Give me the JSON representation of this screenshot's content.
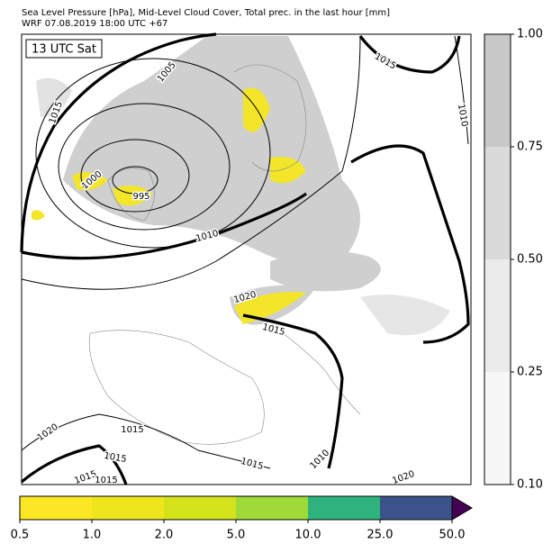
{
  "header": {
    "line1": "Sea Level Pressure [hPa], Mid-Level Cloud Cover, Total prec. in the last hour [mm]",
    "line2": "WRF 07.08.2019 18:00 UTC +67"
  },
  "map": {
    "time_label": "13 UTC Sat",
    "contour_labels": [
      "1015",
      "1005",
      "1000",
      "995",
      "1010",
      "1015",
      "1010",
      "1020",
      "1015",
      "1020",
      "1015",
      "1015",
      "1015",
      "1015",
      "1010",
      "1020",
      "1015"
    ]
  },
  "cloud_colorbar": {
    "ticks": [
      "0.10",
      "0.25",
      "0.50",
      "0.75",
      "1.00"
    ],
    "colors": [
      "#f7f7f7",
      "#ebebeb",
      "#dadada",
      "#c8c8c8"
    ]
  },
  "precip_colorbar": {
    "ticks": [
      "0.5",
      "1.0",
      "2.0",
      "5.0",
      "10.0",
      "25.0",
      "50.0"
    ],
    "colors": [
      "#fde725",
      "#efe51c",
      "#d4e21a",
      "#a0da39",
      "#2eb37c",
      "#3b528b"
    ],
    "extend_color": "#440154"
  }
}
